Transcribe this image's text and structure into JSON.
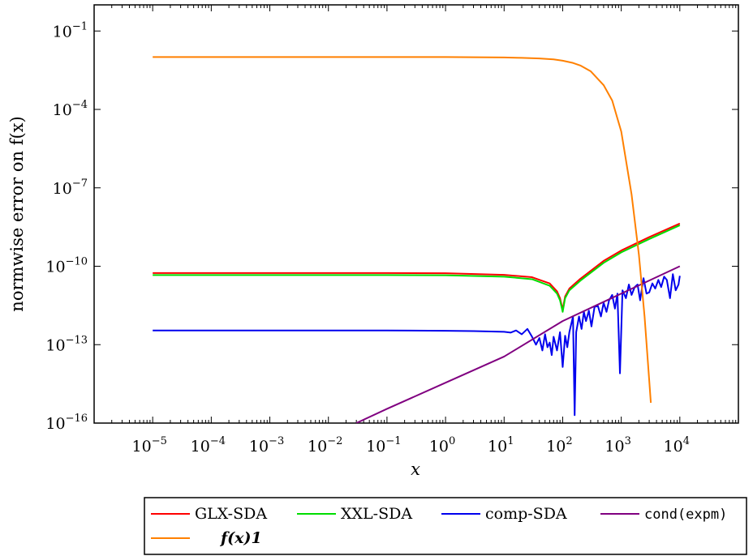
{
  "chart_data": {
    "type": "line",
    "title": "",
    "xlabel": "x",
    "ylabel": "normwise error on f(x)",
    "x_scale": "log",
    "y_scale": "log",
    "xlim": [
      1e-06,
      100000
    ],
    "ylim": [
      1e-16,
      1
    ],
    "x_ticks": [
      {
        "base": "10",
        "exp": "−5",
        "value": 1e-05
      },
      {
        "base": "10",
        "exp": "−4",
        "value": 0.0001
      },
      {
        "base": "10",
        "exp": "−3",
        "value": 0.001
      },
      {
        "base": "10",
        "exp": "−2",
        "value": 0.01
      },
      {
        "base": "10",
        "exp": "−1",
        "value": 0.1
      },
      {
        "base": "10",
        "exp": "0",
        "value": 1
      },
      {
        "base": "10",
        "exp": "1",
        "value": 10
      },
      {
        "base": "10",
        "exp": "2",
        "value": 100
      },
      {
        "base": "10",
        "exp": "3",
        "value": 1000
      },
      {
        "base": "10",
        "exp": "4",
        "value": 10000
      }
    ],
    "y_ticks": [
      {
        "base": "10",
        "exp": "−1",
        "value": 0.1
      },
      {
        "base": "10",
        "exp": "−4",
        "value": 0.0001
      },
      {
        "base": "10",
        "exp": "−7",
        "value": 1e-07
      },
      {
        "base": "10",
        "exp": "−10",
        "value": 1e-10
      },
      {
        "base": "10",
        "exp": "−13",
        "value": 1e-13
      },
      {
        "base": "10",
        "exp": "−16",
        "value": 1e-16
      }
    ],
    "grid": false,
    "legend": "below",
    "series": [
      {
        "name": "GLX-SDA",
        "color": "#ff0000",
        "x": [
          1e-05,
          0.1,
          1,
          10,
          30,
          60,
          80,
          90,
          100,
          110,
          130,
          200,
          500,
          1000,
          3000,
          10000
        ],
        "y": [
          5.5e-11,
          5.5e-11,
          5.4e-11,
          4.7e-11,
          3.8e-11,
          2.2e-11,
          1.1e-11,
          6e-12,
          2.2e-12,
          7e-12,
          1.4e-11,
          3.3e-11,
          1.6e-10,
          4e-10,
          1.3e-09,
          4.3e-09
        ]
      },
      {
        "name": "XXL-SDA",
        "color": "#00dd00",
        "x": [
          1e-05,
          0.1,
          1,
          10,
          30,
          60,
          80,
          90,
          100,
          110,
          130,
          200,
          500,
          1000,
          3000,
          10000
        ],
        "y": [
          4.6e-11,
          4.6e-11,
          4.5e-11,
          4e-11,
          3.2e-11,
          1.8e-11,
          9e-12,
          5e-12,
          1.8e-12,
          6e-12,
          1.2e-11,
          2.8e-11,
          1.35e-10,
          3.4e-10,
          1.1e-09,
          3.7e-09
        ]
      },
      {
        "name": "comp-SDA",
        "color": "#0000ee",
        "x": [
          1e-05,
          0.1,
          1,
          3,
          6,
          10,
          13,
          16,
          20,
          25,
          30,
          35,
          40,
          45,
          50,
          55,
          60,
          65,
          70,
          80,
          90,
          100,
          110,
          120,
          130,
          150,
          160,
          170,
          190,
          210,
          230,
          250,
          280,
          310,
          350,
          400,
          450,
          500,
          560,
          620,
          700,
          780,
          860,
          950,
          1050,
          1200,
          1350,
          1500,
          1700,
          1900,
          2100,
          2400,
          2700,
          3000,
          3400,
          3800,
          4300,
          4800,
          5400,
          6000,
          6800,
          7600,
          8500,
          9500,
          10000
        ],
        "y": [
          3.5e-13,
          3.5e-13,
          3.4e-13,
          3.3e-13,
          3.2e-13,
          3.1e-13,
          2.9e-13,
          3.5e-13,
          2.5e-13,
          4e-13,
          2e-13,
          1e-13,
          1.8e-13,
          6e-14,
          2.5e-13,
          8e-14,
          1.2e-13,
          4e-14,
          2e-13,
          6e-14,
          3e-13,
          1.4e-14,
          2.2e-13,
          8e-14,
          3e-13,
          1.2e-12,
          2e-16,
          3e-13,
          1.2e-12,
          4e-13,
          1.8e-12,
          8e-13,
          2e-12,
          5e-13,
          2.8e-12,
          3e-12,
          1.2e-12,
          4e-12,
          1.8e-12,
          5e-12,
          8e-12,
          2.4e-12,
          9e-12,
          8e-15,
          1.2e-11,
          6e-12,
          2e-11,
          8e-12,
          1.6e-11,
          2e-11,
          5e-12,
          3.5e-11,
          9e-12,
          1e-11,
          2.2e-11,
          1.4e-11,
          3e-11,
          1.6e-11,
          4e-11,
          3e-11,
          6e-12,
          5e-11,
          1.2e-11,
          2e-11,
          4.3e-11
        ]
      },
      {
        "name": "cond(expm)",
        "color": "#800080",
        "x": [
          0.03,
          0.1,
          1,
          10,
          100,
          1000,
          10000
        ],
        "y": [
          1e-16,
          3.5e-16,
          3.5e-15,
          3.5e-14,
          8e-13,
          9e-12,
          1e-10
        ]
      },
      {
        "name": "f(x)1",
        "color": "#ff8000",
        "x": [
          1e-05,
          0.1,
          1,
          10,
          20,
          40,
          70,
          100,
          150,
          200,
          300,
          500,
          700,
          1000,
          1500,
          2000,
          2500,
          3000,
          3200
        ],
        "y": [
          0.0101,
          0.0101,
          0.0101,
          0.0097,
          0.0094,
          0.0089,
          0.0082,
          0.0073,
          0.006,
          0.0048,
          0.0029,
          0.00085,
          0.00022,
          1.42e-05,
          5.6e-08,
          2.8e-10,
          1.2e-12,
          4.4e-15,
          6e-16
        ]
      }
    ],
    "legend_entries": [
      {
        "label": "GLX-SDA",
        "color": "#ff0000"
      },
      {
        "label": "XXL-SDA",
        "color": "#00dd00"
      },
      {
        "label": "comp-SDA",
        "color": "#0000ee"
      },
      {
        "label": "cond(expm)",
        "color": "#800080"
      },
      {
        "label": "f(x)1",
        "color": "#ff8000"
      }
    ]
  }
}
